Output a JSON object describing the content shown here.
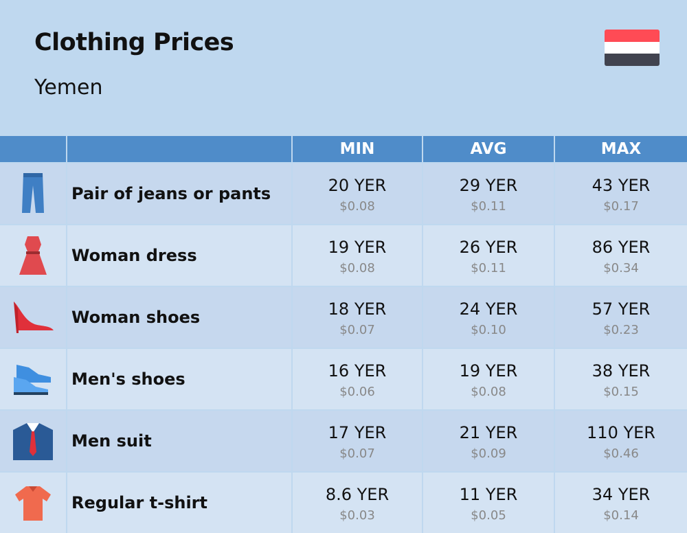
{
  "header": {
    "title": "Clothing Prices",
    "subtitle": "Yemen"
  },
  "table": {
    "columns": [
      "MIN",
      "AVG",
      "MAX"
    ],
    "rows": [
      {
        "item": "Pair of jeans or pants",
        "prices": [
          [
            "20 YER",
            "$0.08"
          ],
          [
            "29 YER",
            "$0.11"
          ],
          [
            "43 YER",
            "$0.17"
          ]
        ]
      },
      {
        "item": "Woman dress",
        "prices": [
          [
            "19 YER",
            "$0.08"
          ],
          [
            "26 YER",
            "$0.11"
          ],
          [
            "86 YER",
            "$0.34"
          ]
        ]
      },
      {
        "item": "Woman shoes",
        "prices": [
          [
            "18 YER",
            "$0.07"
          ],
          [
            "24 YER",
            "$0.10"
          ],
          [
            "57 YER",
            "$0.23"
          ]
        ]
      },
      {
        "item": "Men's shoes",
        "prices": [
          [
            "16 YER",
            "$0.06"
          ],
          [
            "19 YER",
            "$0.08"
          ],
          [
            "38 YER",
            "$0.15"
          ]
        ]
      },
      {
        "item": "Men suit",
        "prices": [
          [
            "17 YER",
            "$0.07"
          ],
          [
            "21 YER",
            "$0.09"
          ],
          [
            "110 YER",
            "$0.46"
          ]
        ]
      },
      {
        "item": "Regular t-shirt",
        "prices": [
          [
            "8.6 YER",
            "$0.03"
          ],
          [
            "11 YER",
            "$0.05"
          ],
          [
            "34 YER",
            "$0.14"
          ]
        ]
      }
    ]
  }
}
